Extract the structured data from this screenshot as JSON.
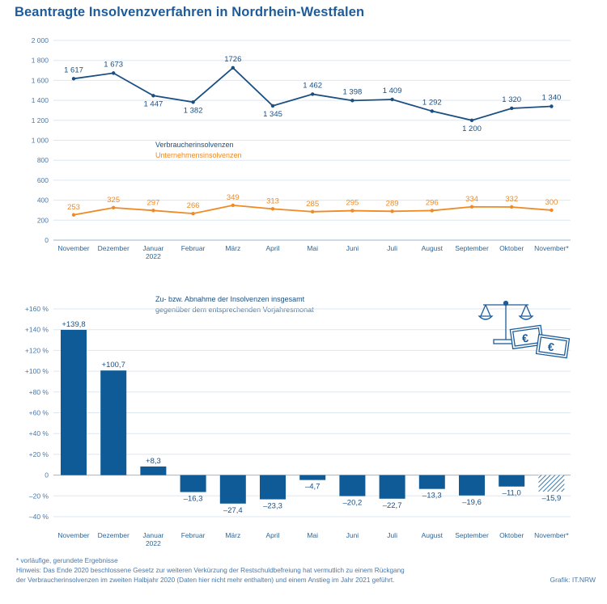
{
  "title": "Beantragte Insolvenzverfahren in Nordrhein-Westfalen",
  "chart_data": [
    {
      "type": "line",
      "categories": [
        [
          "November"
        ],
        [
          "Dezember"
        ],
        [
          "Januar",
          "2022"
        ],
        [
          "Februar"
        ],
        [
          "März"
        ],
        [
          "April"
        ],
        [
          "Mai"
        ],
        [
          "Juni"
        ],
        [
          "Juli"
        ],
        [
          "August"
        ],
        [
          "September"
        ],
        [
          "Oktober"
        ],
        [
          "November*"
        ]
      ],
      "yticks": [
        "2 000",
        "1 800",
        "1 600",
        "1 400",
        "1 200",
        "1 000",
        "800",
        "600",
        "400",
        "200",
        "0"
      ],
      "ylim": [
        0,
        2000
      ],
      "series": [
        {
          "name": "Verbraucherinsolvenzen",
          "color": "#1b4f82",
          "values": [
            1617,
            1673,
            1447,
            1382,
            1726,
            1345,
            1462,
            1398,
            1409,
            1292,
            1200,
            1320,
            1340
          ],
          "labels": [
            "1 617",
            "1 673",
            "1 447",
            "1 382",
            "1726",
            "1 345",
            "1 462",
            "1 398",
            "1 409",
            "1 292",
            "1 200",
            "1 320",
            "1 340"
          ]
        },
        {
          "name": "Unternehmensinsolvenzen",
          "color": "#f08a24",
          "values": [
            253,
            325,
            297,
            266,
            349,
            313,
            285,
            295,
            289,
            296,
            334,
            332,
            300
          ],
          "labels": [
            "253",
            "325",
            "297",
            "266",
            "349",
            "313",
            "285",
            "295",
            "289",
            "296",
            "334",
            "332",
            "300"
          ]
        }
      ]
    },
    {
      "type": "bar",
      "title": "Zu- bzw. Abnahme der Insolvenzen insgesamt",
      "subtitle": "gegenüber dem entsprechenden Vorjahresmonat",
      "categories": [
        [
          "November"
        ],
        [
          "Dezember"
        ],
        [
          "Januar",
          "2022"
        ],
        [
          "Februar"
        ],
        [
          "März"
        ],
        [
          "April"
        ],
        [
          "Mai"
        ],
        [
          "Juni"
        ],
        [
          "Juli"
        ],
        [
          "August"
        ],
        [
          "September"
        ],
        [
          "Oktober"
        ],
        [
          "November*"
        ]
      ],
      "values": [
        139.8,
        100.7,
        8.3,
        -16.3,
        -27.4,
        -23.3,
        -4.7,
        -20.2,
        -22.7,
        -13.3,
        -19.6,
        -11.0,
        -15.9
      ],
      "labels": [
        "+139,8",
        "+100,7",
        "+8,3",
        "–16,3",
        "–27,4",
        "–23,3",
        "–4,7",
        "–20,2",
        "–22,7",
        "–13,3",
        "–19,6",
        "–11,0",
        "–15,9"
      ],
      "provisional": [
        false,
        false,
        false,
        false,
        false,
        false,
        false,
        false,
        false,
        false,
        false,
        false,
        true
      ],
      "yticks": [
        "+160 %",
        "+140 %",
        "+120 %",
        "+100 %",
        "+80 %",
        "+60 %",
        "+40 %",
        "+20 %",
        "0",
        "–20 %",
        "–40 %"
      ],
      "ylim": [
        -40,
        160
      ],
      "bar_color": "#0e5b97"
    }
  ],
  "notes": {
    "footnote": "*  vorläufige, gerundete Ergebnisse",
    "hint_line1": "Hinweis: Das Ende 2020 beschlossene Gesetz zur weiteren Verkürzung der Restschuldbefreiung hat vermutlich zu einem Rückgang",
    "hint_line2": "der Verbraucherinsolvenzen im zweiten Halbjahr 2020 (Daten hier nicht mehr enthalten) und einem Anstieg im Jahr 2021 geführt."
  },
  "credit": "Grafik: IT.NRW",
  "icon": "scales-and-euro-banknotes-icon"
}
